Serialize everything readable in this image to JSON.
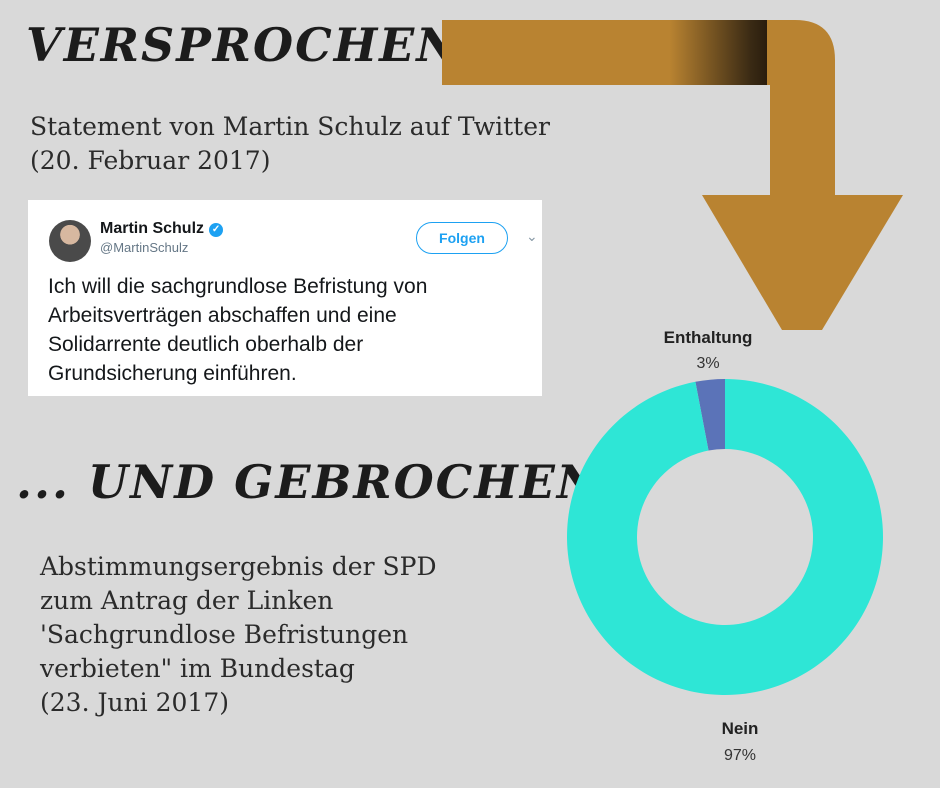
{
  "headline_top": "Versprochen ...",
  "caption_top": [
    "Statement von Martin Schulz auf Twitter",
    "(20. Februar 2017)"
  ],
  "tweet": {
    "name": "Martin Schulz",
    "handle": "@MartinSchulz",
    "follow_label": "Folgen",
    "text_lines": [
      "Ich will die sachgrundlose Befristung von",
      "Arbeitsverträgen abschaffen und eine",
      "Solidarrente deutlich oberhalb der",
      "Grundsicherung einführen."
    ]
  },
  "headline_bottom": "... Und Gebrochen!",
  "caption_bottom": [
    "Abstimmungsergebnis der SPD",
    "zum Antrag der Linken",
    "'Sachgrundlose Befristungen",
    "verbieten\" im Bundestag",
    "(23. Juni 2017)"
  ],
  "colors": {
    "background": "#d9d9d9",
    "arrow": "#b98331",
    "nein": "#2ee6d6",
    "enthaltung": "#5b73b8"
  },
  "chart_data": {
    "type": "pie",
    "variant": "donut",
    "slices": [
      {
        "label": "Enthaltung",
        "value": 3,
        "value_label": "3%",
        "color": "#5b73b8"
      },
      {
        "label": "Nein",
        "value": 97,
        "value_label": "97%",
        "color": "#2ee6d6"
      }
    ]
  }
}
